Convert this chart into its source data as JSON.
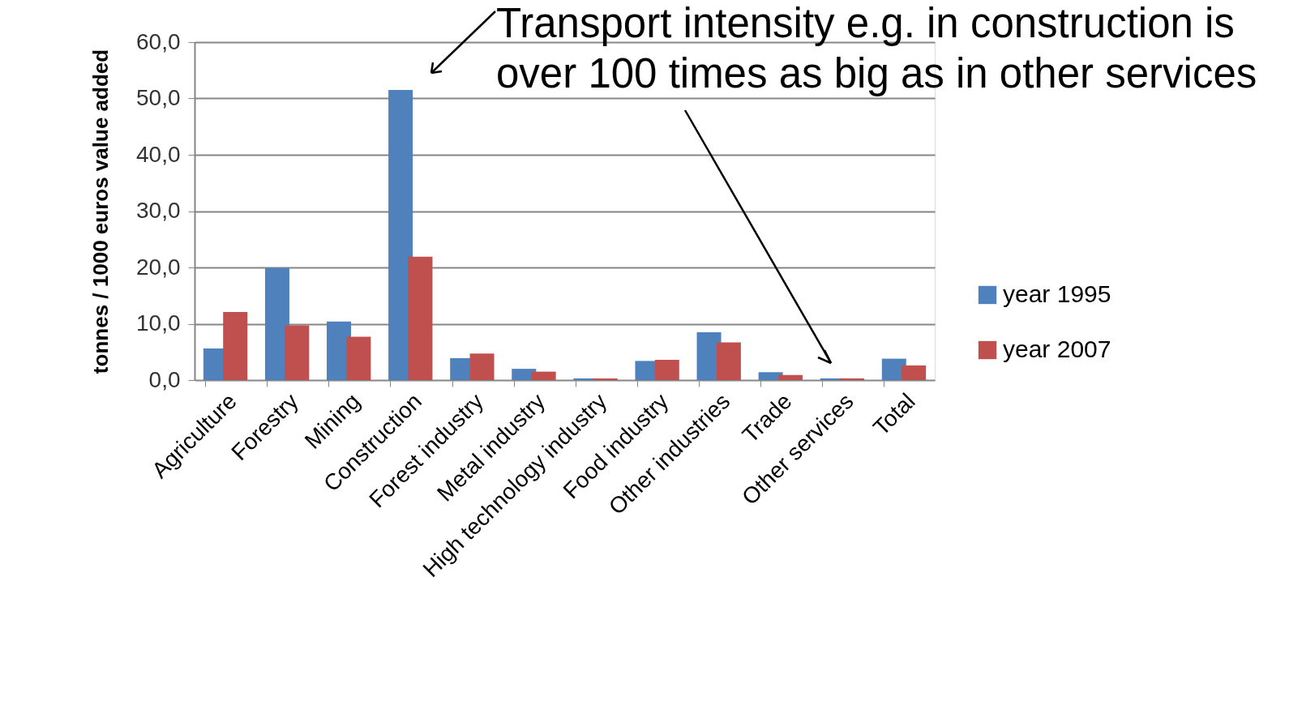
{
  "chart_data": {
    "type": "bar",
    "categories": [
      "Agriculture",
      "Forestry",
      "Mining",
      "Construction",
      "Forest industry",
      "Metal industry",
      "High technology industry",
      "Food industry",
      "Other industries",
      "Trade",
      "Other services",
      "Total"
    ],
    "series": [
      {
        "name": "year 1995",
        "color": "#4f81bd",
        "values": [
          5.6,
          19.9,
          10.4,
          51.5,
          3.9,
          2.0,
          0.3,
          3.4,
          8.5,
          1.4,
          0.3,
          3.8
        ]
      },
      {
        "name": "year 2007",
        "color": "#c0504d",
        "values": [
          12.1,
          9.7,
          7.7,
          21.9,
          4.7,
          1.5,
          0.3,
          3.6,
          6.7,
          0.9,
          0.3,
          2.6
        ]
      }
    ],
    "ylabel": "tonnes / 1000 euros value added",
    "ylim": [
      0,
      60
    ],
    "yticks": [
      {
        "value": 0,
        "label": "0,0"
      },
      {
        "value": 10,
        "label": "10,0"
      },
      {
        "value": 20,
        "label": "20,0"
      },
      {
        "value": 30,
        "label": "30,0"
      },
      {
        "value": 40,
        "label": "40,0"
      },
      {
        "value": 50,
        "label": "50,0"
      },
      {
        "value": 60,
        "label": "60,0"
      }
    ],
    "grid": "y",
    "legend": "right",
    "annotations": [
      "Transport intensity e.g. in construction is\nover 100 times as big as in other services"
    ]
  }
}
